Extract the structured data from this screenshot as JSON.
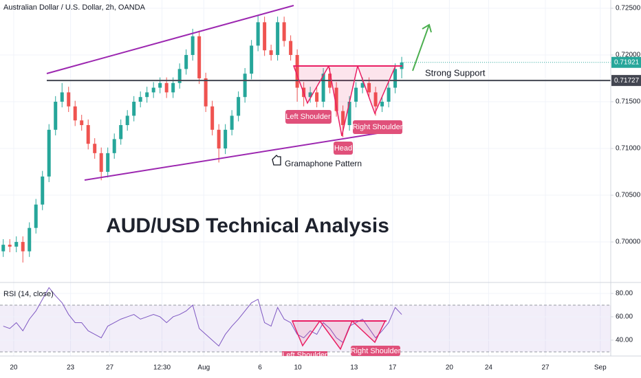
{
  "chart_data": [
    {
      "type": "candlestick",
      "title": "Australian Dollar / U.S. Dollar, 2h, OANDA",
      "heading": "AUD/USD Technical Analysis",
      "pattern": "Gramaphone Pattern",
      "left_shoulder": "Left Shoulder",
      "head": "Head",
      "right_shoulder": "Right Shoulder",
      "support": {
        "value": 0.71727,
        "label": "Strong Support"
      },
      "last_price": 0.71921,
      "up_color": "#26a69a",
      "down_color": "#ef5350",
      "open": [
        0.699,
        0.6997,
        0.6995,
        0.7,
        0.699,
        0.7015,
        0.704,
        0.707,
        0.712,
        0.715,
        0.716,
        0.7145,
        0.713,
        0.7125,
        0.7105,
        0.7095,
        0.7075,
        0.7095,
        0.711,
        0.7125,
        0.7135,
        0.715,
        0.7155,
        0.716,
        0.7165,
        0.717,
        0.716,
        0.717,
        0.7185,
        0.72,
        0.722,
        0.7175,
        0.7145,
        0.712,
        0.71,
        0.712,
        0.7135,
        0.7155,
        0.718,
        0.721,
        0.7235,
        0.7205,
        0.72,
        0.7235,
        0.7215,
        0.72,
        0.7165,
        0.7155,
        0.716,
        0.715,
        0.718,
        0.7165,
        0.714,
        0.7125,
        0.715,
        0.7165,
        0.717,
        0.716,
        0.7145,
        0.715,
        0.7165,
        0.7185
      ],
      "high": [
        0.7003,
        0.7003,
        0.7006,
        0.7006,
        0.7021,
        0.7046,
        0.7076,
        0.7126,
        0.7156,
        0.717,
        0.7166,
        0.7151,
        0.7136,
        0.7131,
        0.7111,
        0.7101,
        0.7101,
        0.7116,
        0.7131,
        0.7141,
        0.7156,
        0.7161,
        0.7166,
        0.7171,
        0.7176,
        0.7176,
        0.7176,
        0.7191,
        0.7206,
        0.7228,
        0.7226,
        0.7181,
        0.7151,
        0.7126,
        0.7126,
        0.7141,
        0.7161,
        0.7186,
        0.7216,
        0.7242,
        0.7241,
        0.7211,
        0.7241,
        0.7241,
        0.7221,
        0.7206,
        0.7171,
        0.7166,
        0.7166,
        0.7186,
        0.7186,
        0.7171,
        0.7146,
        0.7156,
        0.7171,
        0.7176,
        0.7176,
        0.7166,
        0.7156,
        0.7171,
        0.7191,
        0.7198
      ],
      "low": [
        0.6984,
        0.6989,
        0.6989,
        0.6978,
        0.6984,
        0.7009,
        0.7034,
        0.7064,
        0.7114,
        0.7144,
        0.7139,
        0.7124,
        0.7119,
        0.7099,
        0.7089,
        0.7066,
        0.7069,
        0.7089,
        0.7104,
        0.7119,
        0.7129,
        0.7144,
        0.7149,
        0.7154,
        0.7159,
        0.7154,
        0.7154,
        0.7164,
        0.7179,
        0.7194,
        0.7169,
        0.7139,
        0.7114,
        0.7085,
        0.7094,
        0.7114,
        0.7129,
        0.7149,
        0.7174,
        0.7204,
        0.7199,
        0.7194,
        0.7194,
        0.7209,
        0.7194,
        0.715,
        0.7145,
        0.7149,
        0.7144,
        0.7144,
        0.7159,
        0.7134,
        0.7112,
        0.7119,
        0.7144,
        0.7159,
        0.7154,
        0.7135,
        0.7139,
        0.7144,
        0.7159,
        0.7175
      ],
      "close": [
        0.6997,
        0.6995,
        0.7,
        0.699,
        0.7015,
        0.704,
        0.707,
        0.712,
        0.715,
        0.716,
        0.7145,
        0.713,
        0.7125,
        0.7105,
        0.7095,
        0.7075,
        0.7095,
        0.711,
        0.7125,
        0.7135,
        0.715,
        0.7155,
        0.716,
        0.7165,
        0.717,
        0.716,
        0.717,
        0.7185,
        0.72,
        0.722,
        0.7175,
        0.7145,
        0.712,
        0.71,
        0.712,
        0.7135,
        0.7155,
        0.718,
        0.721,
        0.7235,
        0.7205,
        0.72,
        0.7235,
        0.7215,
        0.72,
        0.7165,
        0.7155,
        0.716,
        0.715,
        0.718,
        0.7165,
        0.714,
        0.7125,
        0.715,
        0.7165,
        0.717,
        0.716,
        0.7145,
        0.715,
        0.7165,
        0.7185,
        0.7192
      ],
      "ylim": [
        0.69574,
        0.72588
      ],
      "yticks": [
        {
          "value": 0.725,
          "label": "0.72500"
        },
        {
          "value": 0.72,
          "label": "0.72000"
        },
        {
          "value": 0.715,
          "label": "0.71500"
        },
        {
          "value": 0.71,
          "label": "0.71000"
        },
        {
          "value": 0.705,
          "label": "0.70500"
        },
        {
          "value": 0.7,
          "label": "0.70000"
        }
      ],
      "xlim": [
        -0.5,
        93
      ],
      "xticks": [
        {
          "value": 1.6,
          "label": "20"
        },
        {
          "value": 10.3,
          "label": "23"
        },
        {
          "value": 16.3,
          "label": "27"
        },
        {
          "value": 24.3,
          "label": "12:30"
        },
        {
          "value": 30.7,
          "label": "Aug"
        },
        {
          "value": 39.3,
          "label": "6"
        },
        {
          "value": 45.1,
          "label": "10"
        },
        {
          "value": 53.7,
          "label": "13"
        },
        {
          "value": 59.6,
          "label": "17"
        },
        {
          "value": 68.3,
          "label": "20"
        },
        {
          "value": 74.3,
          "label": "24"
        },
        {
          "value": 83,
          "label": "27"
        },
        {
          "value": 91.4,
          "label": "Sep"
        }
      ]
    },
    {
      "type": "line",
      "title": "RSI (14, close)",
      "color": "#7e57c2",
      "values": [
        52,
        50,
        55,
        48,
        58,
        65,
        75,
        85,
        78,
        72,
        62,
        55,
        55,
        48,
        45,
        42,
        52,
        55,
        58,
        60,
        62,
        58,
        60,
        62,
        60,
        55,
        60,
        62,
        65,
        70,
        50,
        45,
        40,
        35,
        45,
        52,
        58,
        65,
        72,
        75,
        55,
        52,
        68,
        58,
        55,
        45,
        42,
        48,
        45,
        55,
        50,
        42,
        38,
        52,
        55,
        58,
        50,
        42,
        48,
        55,
        68,
        62
      ],
      "band": [
        30,
        70
      ],
      "ylim": [
        28.2,
        88.8
      ],
      "yticks": [
        {
          "value": 80,
          "label": "80.00"
        },
        {
          "value": 60,
          "label": "60.00"
        },
        {
          "value": 40,
          "label": "40.00"
        }
      ],
      "left_shoulder": "Left Shoulder",
      "right_shoulder": "Right Shoulder"
    }
  ]
}
